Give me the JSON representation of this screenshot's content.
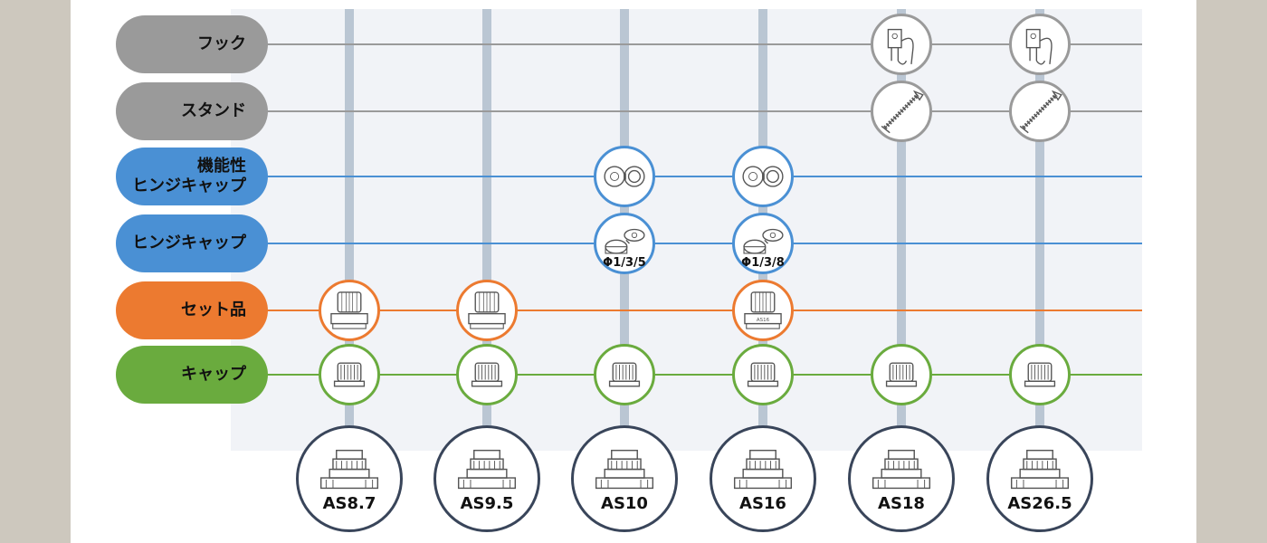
{
  "rows": [
    {
      "id": "hook",
      "label": "フック",
      "color": "#9a9a9a",
      "line_color": "#9a9a9a"
    },
    {
      "id": "stand",
      "label": "スタンド",
      "color": "#9a9a9a",
      "line_color": "#9a9a9a"
    },
    {
      "id": "func_hinge",
      "label": "機能性\nヒンジキャップ",
      "color": "#4a90d4",
      "line_color": "#4a90d4"
    },
    {
      "id": "hinge",
      "label": "ヒンジキャップ",
      "color": "#4a90d4",
      "line_color": "#4a90d4"
    },
    {
      "id": "set",
      "label": "セット品",
      "color": "#ec7a30",
      "line_color": "#ec7a30"
    },
    {
      "id": "cap",
      "label": "キャップ",
      "color": "#6aab3e",
      "line_color": "#6aab3e"
    }
  ],
  "columns": [
    {
      "id": "as8_7",
      "label": "AS8.7",
      "items": [
        "set",
        "cap"
      ]
    },
    {
      "id": "as9_5",
      "label": "AS9.5",
      "items": [
        "set",
        "cap"
      ]
    },
    {
      "id": "as10",
      "label": "AS10",
      "items": [
        "func_hinge",
        "hinge",
        "cap"
      ],
      "hinge_caption": "Φ1/3/5"
    },
    {
      "id": "as16",
      "label": "AS16",
      "items": [
        "func_hinge",
        "hinge",
        "set",
        "cap"
      ],
      "hinge_caption": "Φ1/3/8",
      "set_badge": "AS16"
    },
    {
      "id": "as18",
      "label": "AS18",
      "items": [
        "hook",
        "stand",
        "cap"
      ]
    },
    {
      "id": "as26_5",
      "label": "AS26.5",
      "items": [
        "hook",
        "stand",
        "cap"
      ]
    }
  ],
  "colors": {
    "side_panel": "#cdc8be",
    "grid_bg": "#f1f3f7",
    "vbar": "#bac6d3",
    "size_ring": "#39455a"
  },
  "icons": {
    "hook": "hook-icon",
    "stand": "stand-icon",
    "func_hinge": "functional-hinge-cap-icon",
    "hinge": "hinge-cap-icon",
    "set": "cap-set-icon",
    "cap": "cap-icon",
    "spout": "spout-icon"
  }
}
